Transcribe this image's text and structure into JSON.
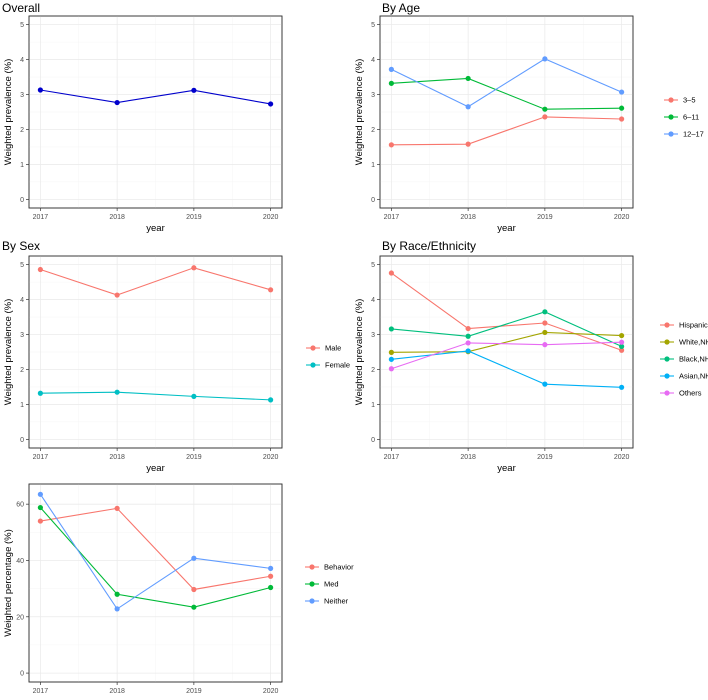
{
  "chart_data": [
    {
      "type": "line",
      "title": "Overall",
      "xlabel": "year",
      "ylabel": "Weighted prevalence (%)",
      "x": [
        2017,
        2018,
        2019,
        2020
      ],
      "ylim": [
        0,
        5
      ],
      "yticks": [
        0,
        1,
        2,
        3,
        4,
        5
      ],
      "series": [
        {
          "name": "",
          "color": "#0000cc",
          "values": [
            3.13,
            2.77,
            3.12,
            2.73
          ]
        }
      ]
    },
    {
      "type": "line",
      "title": "By Age",
      "xlabel": "year",
      "ylabel": "Weighted prevalence (%)",
      "x": [
        2017,
        2018,
        2019,
        2020
      ],
      "ylim": [
        0,
        5
      ],
      "yticks": [
        0,
        1,
        2,
        3,
        4,
        5
      ],
      "series": [
        {
          "name": "3–5",
          "color": "#F8766D",
          "values": [
            1.56,
            1.58,
            2.36,
            2.3
          ]
        },
        {
          "name": "6–11",
          "color": "#00BA38",
          "values": [
            3.32,
            3.46,
            2.58,
            2.61
          ]
        },
        {
          "name": "12–17",
          "color": "#619CFF",
          "values": [
            3.72,
            2.65,
            4.02,
            3.07
          ]
        }
      ]
    },
    {
      "type": "line",
      "title": "By Sex",
      "xlabel": "year",
      "ylabel": "Weighted prevalence (%)",
      "x": [
        2017,
        2018,
        2019,
        2020
      ],
      "ylim": [
        0,
        5
      ],
      "yticks": [
        0,
        1,
        2,
        3,
        4,
        5
      ],
      "series": [
        {
          "name": "Male",
          "color": "#F8766D",
          "values": [
            4.86,
            4.13,
            4.91,
            4.28
          ]
        },
        {
          "name": "Female",
          "color": "#00BFC4",
          "values": [
            1.32,
            1.35,
            1.23,
            1.13
          ]
        }
      ]
    },
    {
      "type": "line",
      "title": "By Race/Ethnicity",
      "xlabel": "year",
      "ylabel": "Weighted prevalence (%)",
      "x": [
        2017,
        2018,
        2019,
        2020
      ],
      "ylim": [
        0,
        5
      ],
      "yticks": [
        0,
        1,
        2,
        3,
        4,
        5
      ],
      "series": [
        {
          "name": "Hispanic",
          "color": "#F8766D",
          "values": [
            4.76,
            3.17,
            3.33,
            2.55
          ]
        },
        {
          "name": "White,NH",
          "color": "#A3A500",
          "values": [
            2.49,
            2.51,
            3.06,
            2.97
          ]
        },
        {
          "name": "Black,NH",
          "color": "#00BF7D",
          "values": [
            3.16,
            2.95,
            3.65,
            2.66
          ]
        },
        {
          "name": "Asian,NH",
          "color": "#00B0F6",
          "values": [
            2.29,
            2.53,
            1.58,
            1.49
          ]
        },
        {
          "name": "Others",
          "color": "#E76BF3",
          "values": [
            2.02,
            2.76,
            2.71,
            2.78
          ]
        }
      ]
    },
    {
      "type": "line",
      "title": "",
      "xlabel": "year",
      "ylabel": "Weighted percentage (%)",
      "x": [
        2017,
        2018,
        2019,
        2020
      ],
      "ylim": [
        0,
        64
      ],
      "yticks": [
        0,
        20,
        40,
        60
      ],
      "series": [
        {
          "name": "Behavior",
          "color": "#F8766D",
          "values": [
            54.0,
            58.5,
            29.7,
            34.4
          ]
        },
        {
          "name": "Med",
          "color": "#00BA38",
          "values": [
            58.8,
            28.0,
            23.4,
            30.4
          ]
        },
        {
          "name": "Neither",
          "color": "#619CFF",
          "values": [
            63.5,
            22.8,
            40.8,
            37.2
          ]
        }
      ]
    }
  ]
}
